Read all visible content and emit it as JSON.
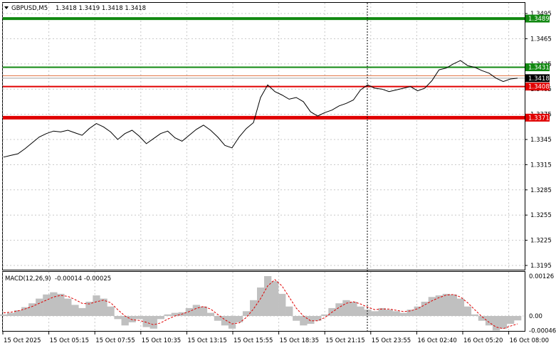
{
  "header": {
    "symbol_timeframe": "GBPUSD,M5",
    "quote": "1.3418 1.3419 1.3418 1.3418"
  },
  "macd": {
    "label": "MACD(12,26,9)",
    "values": "-0.00014 -0.00025",
    "axis_labels": [
      "0.00126",
      "0.00",
      "-0.00046"
    ]
  },
  "price_axis": {
    "ticks": [
      "1.3495",
      "1.3465",
      "1.3435",
      "1.3405",
      "1.3375",
      "1.3345",
      "1.3315",
      "1.3285",
      "1.3255",
      "1.3225",
      "1.3195"
    ]
  },
  "levels": [
    {
      "name": "level-1-3489",
      "label": "1.3489",
      "value": 1.3489,
      "color": "#118811",
      "thickness": 4
    },
    {
      "name": "level-1-3431",
      "label": "1.3431",
      "value": 1.3431,
      "color": "#118811",
      "thickness": 2
    },
    {
      "name": "level-1-3408",
      "label": "1.3408",
      "value": 1.3408,
      "color": "#e00000",
      "thickness": 2
    },
    {
      "name": "level-1-3371",
      "label": "1.3371",
      "value": 1.3371,
      "color": "#e00000",
      "thickness": 5
    }
  ],
  "current_price": {
    "label": "1.3418",
    "value": 1.3418
  },
  "time_axis": {
    "labels": [
      "15 Oct 2025",
      "15 Oct 05:15",
      "15 Oct 07:55",
      "15 Oct 10:35",
      "15 Oct 13:15",
      "15 Oct 15:55",
      "15 Oct 18:35",
      "15 Oct 21:15",
      "15 Oct 23:55",
      "16 Oct 02:40",
      "16 Oct 05:20",
      "16 Oct 08:00"
    ]
  },
  "chart_data": {
    "type": "line",
    "series": [
      {
        "values": [
          1.3324,
          1.3326,
          1.3328,
          1.3334,
          1.3341,
          1.3348,
          1.3352,
          1.3355,
          1.3354,
          1.3356,
          1.3353,
          1.335,
          1.3358,
          1.3364,
          1.336,
          1.3354,
          1.3345,
          1.3352,
          1.3356,
          1.3349,
          1.334,
          1.3346,
          1.3352,
          1.3355,
          1.3347,
          1.3343,
          1.335,
          1.3357,
          1.3362,
          1.3356,
          1.3348,
          1.3338,
          1.3335,
          1.3348,
          1.3358,
          1.3365,
          1.3395,
          1.341,
          1.3402,
          1.3398,
          1.3393,
          1.3395,
          1.339,
          1.3378,
          1.3373,
          1.3377,
          1.338,
          1.3385,
          1.3388,
          1.3392,
          1.3404,
          1.341,
          1.3406,
          1.3405,
          1.3402,
          1.3404,
          1.3406,
          1.3408,
          1.3403,
          1.3406,
          1.3415,
          1.3428,
          1.343,
          1.3435,
          1.3439,
          1.3433,
          1.3431,
          1.3427,
          1.3424,
          1.3418,
          1.3414,
          1.3417,
          1.3418
        ]
      }
    ]
  },
  "macd_data": {
    "histogram": [
      5e-05,
      0.0001,
      0.00018,
      0.00028,
      0.0004,
      0.00055,
      0.00068,
      0.00075,
      0.0007,
      0.00055,
      0.00035,
      0.00025,
      0.00045,
      0.00065,
      0.00055,
      0.0003,
      -0.0001,
      -0.0003,
      -0.0002,
      -0.0001,
      -0.00035,
      -0.0004,
      -0.0001,
      5e-05,
      0.0001,
      0.00012,
      0.00025,
      0.00035,
      0.0003,
      0.0001,
      -0.00015,
      -0.0003,
      -0.0004,
      -0.0002,
      0.00015,
      0.0005,
      0.0009,
      0.00126,
      0.0011,
      0.0007,
      0.0003,
      -0.00015,
      -0.0003,
      -0.00025,
      -0.00015,
      5e-05,
      0.00025,
      0.0004,
      0.0005,
      0.00045,
      0.0003,
      0.0002,
      0.00015,
      0.00025,
      0.0002,
      0.00015,
      0.0001,
      0.0002,
      0.0003,
      0.00045,
      0.0006,
      0.00065,
      0.0007,
      0.00068,
      0.00055,
      0.0003,
      5e-05,
      -0.00015,
      -0.0003,
      -0.00046,
      -0.0004,
      -0.00025,
      -0.00014
    ],
    "signal": [
      0.0001,
      0.00012,
      0.00016,
      0.00022,
      0.0003,
      0.0004,
      0.0005,
      0.0006,
      0.00065,
      0.00062,
      0.00052,
      0.0004,
      0.00038,
      0.00045,
      0.0005,
      0.00042,
      0.0002,
      0.0,
      -0.00012,
      -0.00014,
      -0.0002,
      -0.00028,
      -0.00022,
      -0.0001,
      0.0,
      6e-05,
      0.00014,
      0.00024,
      0.0003,
      0.00022,
      5e-05,
      -0.00012,
      -0.00025,
      -0.00022,
      -5e-05,
      0.00022,
      0.00055,
      0.00095,
      0.00115,
      0.00095,
      0.0006,
      0.00025,
      0.0,
      -0.00015,
      -0.00015,
      -5e-05,
      0.00012,
      0.00027,
      0.0004,
      0.00045,
      0.00038,
      0.00028,
      0.0002,
      0.00022,
      0.00022,
      0.00018,
      0.00014,
      0.00016,
      0.00023,
      0.00035,
      0.00048,
      0.00058,
      0.00066,
      0.00068,
      0.0006,
      0.00042,
      0.0002,
      -2e-05,
      -0.0002,
      -0.00035,
      -0.0004,
      -0.00032,
      -0.00025
    ]
  }
}
